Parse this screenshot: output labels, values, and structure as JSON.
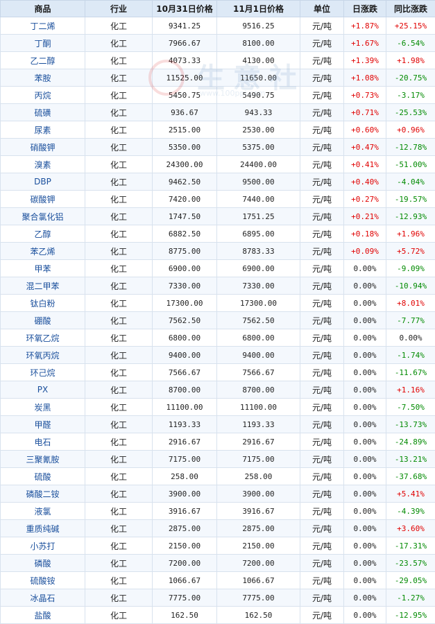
{
  "headers": [
    "商品",
    "行业",
    "10月31日价格",
    "11月1日价格",
    "单位",
    "日涨跌",
    "同比涨跌"
  ],
  "watermark": {
    "text": "生意社",
    "url": "www.100ppi.com"
  },
  "colors": {
    "up": "#e00000",
    "down": "#008a00",
    "header_bg": "#dde9f6",
    "name": "#1a4f9c"
  },
  "rows": [
    {
      "name": "丁二烯",
      "industry": "化工",
      "p1": "9341.25",
      "p2": "9516.25",
      "unit": "元/吨",
      "day": "+1.87%",
      "yoy": "+25.15%"
    },
    {
      "name": "丁酮",
      "industry": "化工",
      "p1": "7966.67",
      "p2": "8100.00",
      "unit": "元/吨",
      "day": "+1.67%",
      "yoy": "-6.54%"
    },
    {
      "name": "乙二醇",
      "industry": "化工",
      "p1": "4073.33",
      "p2": "4130.00",
      "unit": "元/吨",
      "day": "+1.39%",
      "yoy": "+1.98%"
    },
    {
      "name": "苯胺",
      "industry": "化工",
      "p1": "11525.00",
      "p2": "11650.00",
      "unit": "元/吨",
      "day": "+1.08%",
      "yoy": "-20.75%"
    },
    {
      "name": "丙烷",
      "industry": "化工",
      "p1": "5450.75",
      "p2": "5490.75",
      "unit": "元/吨",
      "day": "+0.73%",
      "yoy": "-3.17%"
    },
    {
      "name": "硫磺",
      "industry": "化工",
      "p1": "936.67",
      "p2": "943.33",
      "unit": "元/吨",
      "day": "+0.71%",
      "yoy": "-25.53%"
    },
    {
      "name": "尿素",
      "industry": "化工",
      "p1": "2515.00",
      "p2": "2530.00",
      "unit": "元/吨",
      "day": "+0.60%",
      "yoy": "+0.96%"
    },
    {
      "name": "硝酸钾",
      "industry": "化工",
      "p1": "5350.00",
      "p2": "5375.00",
      "unit": "元/吨",
      "day": "+0.47%",
      "yoy": "-12.78%"
    },
    {
      "name": "溴素",
      "industry": "化工",
      "p1": "24300.00",
      "p2": "24400.00",
      "unit": "元/吨",
      "day": "+0.41%",
      "yoy": "-51.00%"
    },
    {
      "name": "DBP",
      "industry": "化工",
      "p1": "9462.50",
      "p2": "9500.00",
      "unit": "元/吨",
      "day": "+0.40%",
      "yoy": "-4.04%"
    },
    {
      "name": "碳酸钾",
      "industry": "化工",
      "p1": "7420.00",
      "p2": "7440.00",
      "unit": "元/吨",
      "day": "+0.27%",
      "yoy": "-19.57%"
    },
    {
      "name": "聚合氯化铝",
      "industry": "化工",
      "p1": "1747.50",
      "p2": "1751.25",
      "unit": "元/吨",
      "day": "+0.21%",
      "yoy": "-12.93%"
    },
    {
      "name": "乙醇",
      "industry": "化工",
      "p1": "6882.50",
      "p2": "6895.00",
      "unit": "元/吨",
      "day": "+0.18%",
      "yoy": "+1.96%"
    },
    {
      "name": "苯乙烯",
      "industry": "化工",
      "p1": "8775.00",
      "p2": "8783.33",
      "unit": "元/吨",
      "day": "+0.09%",
      "yoy": "+5.72%"
    },
    {
      "name": "甲苯",
      "industry": "化工",
      "p1": "6900.00",
      "p2": "6900.00",
      "unit": "元/吨",
      "day": "0.00%",
      "yoy": "-9.09%"
    },
    {
      "name": "混二甲苯",
      "industry": "化工",
      "p1": "7330.00",
      "p2": "7330.00",
      "unit": "元/吨",
      "day": "0.00%",
      "yoy": "-10.94%"
    },
    {
      "name": "钛白粉",
      "industry": "化工",
      "p1": "17300.00",
      "p2": "17300.00",
      "unit": "元/吨",
      "day": "0.00%",
      "yoy": "+8.01%"
    },
    {
      "name": "硼酸",
      "industry": "化工",
      "p1": "7562.50",
      "p2": "7562.50",
      "unit": "元/吨",
      "day": "0.00%",
      "yoy": "-7.77%"
    },
    {
      "name": "环氧乙烷",
      "industry": "化工",
      "p1": "6800.00",
      "p2": "6800.00",
      "unit": "元/吨",
      "day": "0.00%",
      "yoy": "0.00%"
    },
    {
      "name": "环氧丙烷",
      "industry": "化工",
      "p1": "9400.00",
      "p2": "9400.00",
      "unit": "元/吨",
      "day": "0.00%",
      "yoy": "-1.74%"
    },
    {
      "name": "环己烷",
      "industry": "化工",
      "p1": "7566.67",
      "p2": "7566.67",
      "unit": "元/吨",
      "day": "0.00%",
      "yoy": "-11.67%"
    },
    {
      "name": "PX",
      "industry": "化工",
      "p1": "8700.00",
      "p2": "8700.00",
      "unit": "元/吨",
      "day": "0.00%",
      "yoy": "+1.16%"
    },
    {
      "name": "炭黑",
      "industry": "化工",
      "p1": "11100.00",
      "p2": "11100.00",
      "unit": "元/吨",
      "day": "0.00%",
      "yoy": "-7.50%"
    },
    {
      "name": "甲醛",
      "industry": "化工",
      "p1": "1193.33",
      "p2": "1193.33",
      "unit": "元/吨",
      "day": "0.00%",
      "yoy": "-13.73%"
    },
    {
      "name": "电石",
      "industry": "化工",
      "p1": "2916.67",
      "p2": "2916.67",
      "unit": "元/吨",
      "day": "0.00%",
      "yoy": "-24.89%"
    },
    {
      "name": "三聚氰胺",
      "industry": "化工",
      "p1": "7175.00",
      "p2": "7175.00",
      "unit": "元/吨",
      "day": "0.00%",
      "yoy": "-13.21%"
    },
    {
      "name": "硫酸",
      "industry": "化工",
      "p1": "258.00",
      "p2": "258.00",
      "unit": "元/吨",
      "day": "0.00%",
      "yoy": "-37.68%"
    },
    {
      "name": "磷酸二铵",
      "industry": "化工",
      "p1": "3900.00",
      "p2": "3900.00",
      "unit": "元/吨",
      "day": "0.00%",
      "yoy": "+5.41%"
    },
    {
      "name": "液氯",
      "industry": "化工",
      "p1": "3916.67",
      "p2": "3916.67",
      "unit": "元/吨",
      "day": "0.00%",
      "yoy": "-4.39%"
    },
    {
      "name": "重质纯碱",
      "industry": "化工",
      "p1": "2875.00",
      "p2": "2875.00",
      "unit": "元/吨",
      "day": "0.00%",
      "yoy": "+3.60%"
    },
    {
      "name": "小苏打",
      "industry": "化工",
      "p1": "2150.00",
      "p2": "2150.00",
      "unit": "元/吨",
      "day": "0.00%",
      "yoy": "-17.31%"
    },
    {
      "name": "磷酸",
      "industry": "化工",
      "p1": "7200.00",
      "p2": "7200.00",
      "unit": "元/吨",
      "day": "0.00%",
      "yoy": "-23.57%"
    },
    {
      "name": "硫酸铵",
      "industry": "化工",
      "p1": "1066.67",
      "p2": "1066.67",
      "unit": "元/吨",
      "day": "0.00%",
      "yoy": "-29.05%"
    },
    {
      "name": "冰晶石",
      "industry": "化工",
      "p1": "7775.00",
      "p2": "7775.00",
      "unit": "元/吨",
      "day": "0.00%",
      "yoy": "-1.27%"
    },
    {
      "name": "盐酸",
      "industry": "化工",
      "p1": "162.50",
      "p2": "162.50",
      "unit": "元/吨",
      "day": "0.00%",
      "yoy": "-12.95%"
    }
  ]
}
